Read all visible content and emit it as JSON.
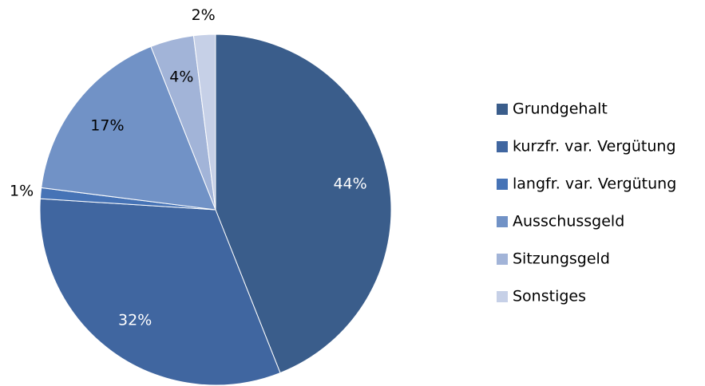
{
  "chart_data": {
    "type": "pie",
    "categories": [
      "Grundgehalt",
      "kurzfr. var. Vergütung",
      "langfr. var. Vergütung",
      "Ausschussgeld",
      "Sitzungsgeld",
      "Sonstiges"
    ],
    "values": [
      44,
      32,
      1,
      17,
      4,
      2
    ],
    "value_labels": [
      "44%",
      "32%",
      "1%",
      "17%",
      "4%",
      "2%"
    ],
    "colors": [
      "#3a5d8b",
      "#4066a0",
      "#4673b6",
      "#7192c6",
      "#a2b4d8",
      "#c6d0e7"
    ],
    "legend": "right"
  }
}
